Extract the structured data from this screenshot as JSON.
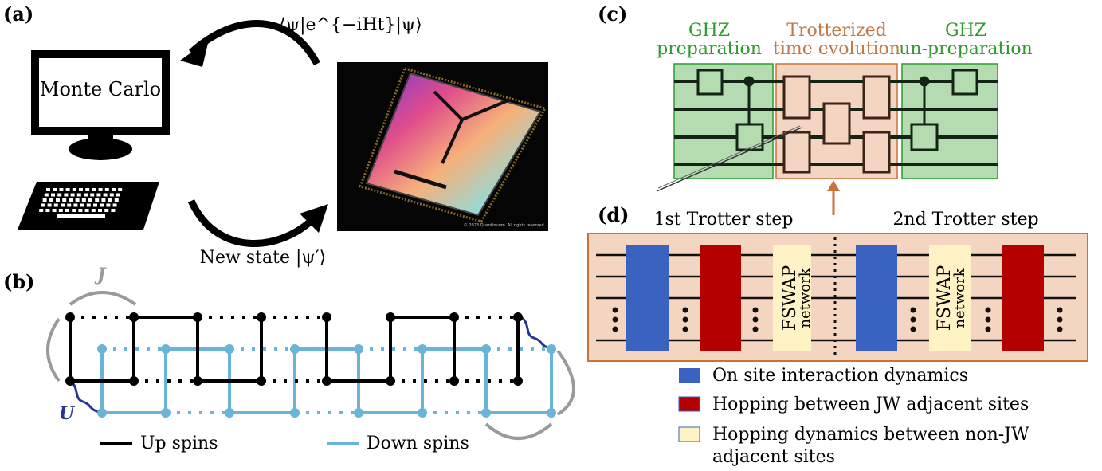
{
  "panels": {
    "a": {
      "label": "(a)",
      "computer_text": "Monte Carlo",
      "top_arrow_text": "⟨ψ|e^{−iHt}|ψ⟩",
      "bottom_arrow_text": "New state |ψ′⟩",
      "chip_footer": "© 2023 Quantinuum. All rights reserved."
    },
    "b": {
      "label": "(b)",
      "coupling_J": "J",
      "coupling_U": "U",
      "legend_up": "Up spins",
      "legend_down": "Down spins"
    },
    "c": {
      "label": "(c)",
      "ghz_prep_line1": "GHZ",
      "ghz_prep_line2": "preparation",
      "trotter_line1": "Trotterized",
      "trotter_line2": "time evolution",
      "ghz_unprep_line1": "GHZ",
      "ghz_unprep_line2": "un-preparation"
    },
    "d": {
      "label": "(d)",
      "step1": "1st Trotter step",
      "step2": "2nd Trotter step",
      "fswap_line1": "FSWAP",
      "fswap_line2": "network",
      "legend": [
        {
          "text": "On site interaction dynamics",
          "color": "#3a62c0"
        },
        {
          "text": "Hopping between JW adjacent sites",
          "color": "#b50000"
        },
        {
          "text": "Hopping dynamics between non-JW",
          "color": "#fff2c4"
        },
        {
          "text": "adjacent sites",
          "color": ""
        }
      ]
    }
  },
  "colors": {
    "up_spin": "#000000",
    "down_spin": "#6ab4d8",
    "ghz_fill": "#b5dbb0",
    "trotter_fill": "#f3d5c2",
    "d_fill": "#f3d5c2",
    "d_border": "#c9733b",
    "coupling": "#9a9a9a",
    "U_color": "#283593"
  }
}
